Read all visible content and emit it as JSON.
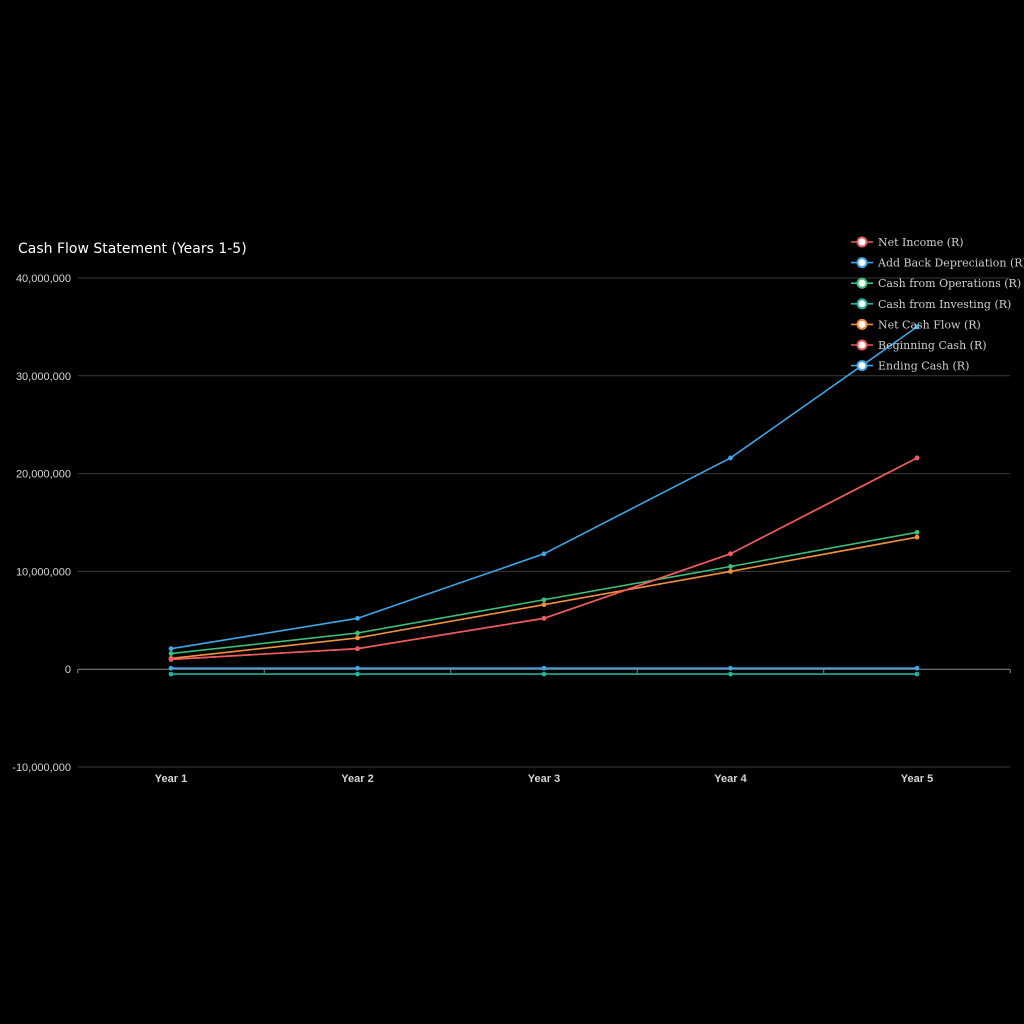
{
  "chart_data": {
    "type": "line",
    "title": "Cash Flow Statement (Years 1-5)",
    "xlabel": "",
    "ylabel": "",
    "categories": [
      "Year 1",
      "Year 2",
      "Year 3",
      "Year 4",
      "Year 5"
    ],
    "ylim": [
      -10000000,
      40000000
    ],
    "yticks": [
      -10000000,
      0,
      10000000,
      20000000,
      30000000,
      40000000
    ],
    "ytick_labels": [
      "-10,000,000",
      "0",
      "10,000,000",
      "20,000,000",
      "30,000,000",
      "40,000,000"
    ],
    "grid": true,
    "legend_position": "top-right",
    "series": [
      {
        "name": "Net Income (R)",
        "color": "#ec5b5b",
        "values": [
          1000000,
          2100000,
          5200000,
          11800000,
          21600000
        ]
      },
      {
        "name": "Add Back Depreciation (R)",
        "color": "#3fa6e8",
        "values": [
          100000,
          100000,
          100000,
          100000,
          100000
        ]
      },
      {
        "name": "Cash from Operations (R)",
        "color": "#3cbf7a",
        "values": [
          1600000,
          3700000,
          7100000,
          10500000,
          14000000
        ]
      },
      {
        "name": "Cash from Investing (R)",
        "color": "#1fb39b",
        "values": [
          -500000,
          -500000,
          -500000,
          -500000,
          -500000
        ]
      },
      {
        "name": "Net Cash Flow (R)",
        "color": "#f0913a",
        "values": [
          1100000,
          3200000,
          6600000,
          10000000,
          13500000
        ]
      },
      {
        "name": "Beginning Cash (R)",
        "color": "#ec5b5b",
        "values": [
          1000000,
          2100000,
          5200000,
          11800000,
          21600000
        ]
      },
      {
        "name": "Ending Cash (R)",
        "color": "#3fa6e8",
        "values": [
          2100000,
          5200000,
          11800000,
          21600000,
          35000000
        ]
      }
    ]
  }
}
